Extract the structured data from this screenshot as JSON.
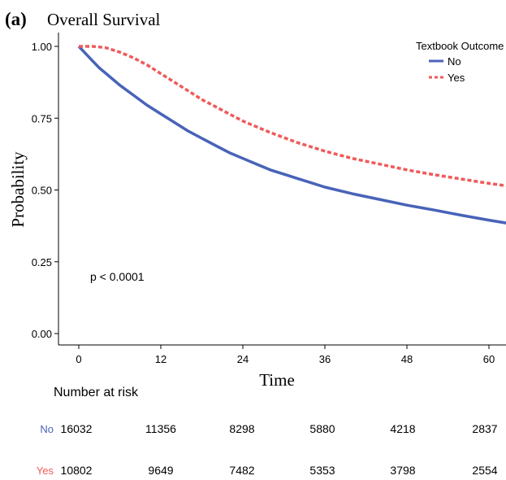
{
  "figure_label": "(a)",
  "chart_data": {
    "type": "line",
    "title": "Overall Survival",
    "xlabel": "Time",
    "ylabel": "Probability",
    "xlim": [
      -2,
      63
    ],
    "ylim": [
      0,
      1.05
    ],
    "xticks": [
      0,
      12,
      24,
      36,
      48,
      60
    ],
    "xtick_labels": [
      "0",
      "12",
      "24",
      "36",
      "48",
      "60"
    ],
    "yticks": [
      0,
      0.25,
      0.5,
      0.75,
      1.0
    ],
    "ytick_labels": [
      "0.00",
      "0.25",
      "0.50",
      "0.75",
      "1.00"
    ],
    "grid": false,
    "legend": {
      "title": "Textbook Outcome",
      "placement": "top-right"
    },
    "annotation": "p < 0.0001",
    "series": [
      {
        "name": "No",
        "color": "#4863b8",
        "dash": "solid",
        "x": [
          0,
          1,
          2,
          3,
          4,
          6,
          8,
          10,
          12,
          14,
          16,
          18,
          20,
          22,
          24,
          26,
          28,
          30,
          32,
          34,
          36,
          40,
          44,
          48,
          52,
          56,
          60,
          63
        ],
        "y": [
          1.0,
          0.975,
          0.95,
          0.925,
          0.905,
          0.865,
          0.83,
          0.795,
          0.765,
          0.735,
          0.705,
          0.68,
          0.655,
          0.63,
          0.61,
          0.59,
          0.57,
          0.555,
          0.54,
          0.525,
          0.51,
          0.487,
          0.467,
          0.447,
          0.43,
          0.412,
          0.395,
          0.383
        ]
      },
      {
        "name": "Yes",
        "color": "#ef5a5a",
        "dash": "dashed",
        "x": [
          0,
          1,
          2,
          3,
          4,
          6,
          8,
          10,
          12,
          14,
          16,
          18,
          20,
          22,
          24,
          28,
          32,
          36,
          40,
          44,
          48,
          52,
          56,
          60,
          63
        ],
        "y": [
          1.0,
          1.0,
          1.0,
          0.998,
          0.995,
          0.98,
          0.96,
          0.935,
          0.905,
          0.875,
          0.845,
          0.815,
          0.79,
          0.765,
          0.74,
          0.7,
          0.665,
          0.635,
          0.61,
          0.59,
          0.57,
          0.553,
          0.538,
          0.523,
          0.513
        ]
      }
    ]
  },
  "risk_table": {
    "title": "Number at risk",
    "rows": [
      {
        "label": "No",
        "color": "#4863b8",
        "values": [
          "16032",
          "11356",
          "8298",
          "5880",
          "4218",
          "2837"
        ]
      },
      {
        "label": "Yes",
        "color": "#ef5a5a",
        "values": [
          "10802",
          "9649",
          "7482",
          "5353",
          "3798",
          "2554"
        ]
      }
    ]
  }
}
